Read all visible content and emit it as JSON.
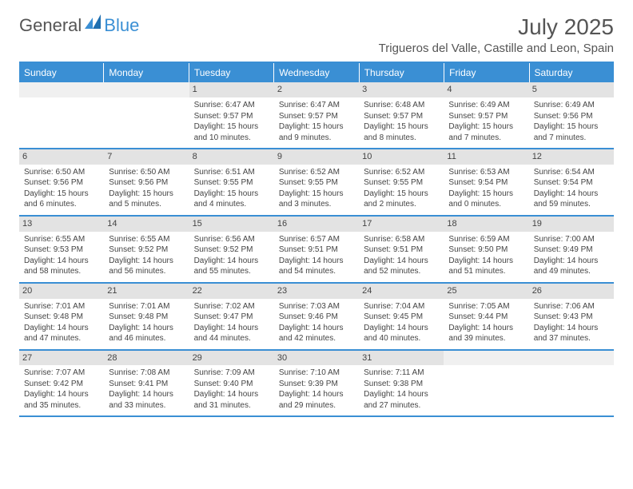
{
  "brand": {
    "part1": "General",
    "part2": "Blue"
  },
  "title": "July 2025",
  "location": "Trigueros del Valle, Castille and Leon, Spain",
  "colors": {
    "accent": "#3a8fd4",
    "header_text": "#ffffff",
    "daynum_bg": "#e3e3e3",
    "body_text": "#444444",
    "title_text": "#555555"
  },
  "dayNames": [
    "Sunday",
    "Monday",
    "Tuesday",
    "Wednesday",
    "Thursday",
    "Friday",
    "Saturday"
  ],
  "weeks": [
    [
      null,
      null,
      {
        "n": "1",
        "sr": "6:47 AM",
        "ss": "9:57 PM",
        "dl": "15 hours and 10 minutes."
      },
      {
        "n": "2",
        "sr": "6:47 AM",
        "ss": "9:57 PM",
        "dl": "15 hours and 9 minutes."
      },
      {
        "n": "3",
        "sr": "6:48 AM",
        "ss": "9:57 PM",
        "dl": "15 hours and 8 minutes."
      },
      {
        "n": "4",
        "sr": "6:49 AM",
        "ss": "9:57 PM",
        "dl": "15 hours and 7 minutes."
      },
      {
        "n": "5",
        "sr": "6:49 AM",
        "ss": "9:56 PM",
        "dl": "15 hours and 7 minutes."
      }
    ],
    [
      {
        "n": "6",
        "sr": "6:50 AM",
        "ss": "9:56 PM",
        "dl": "15 hours and 6 minutes."
      },
      {
        "n": "7",
        "sr": "6:50 AM",
        "ss": "9:56 PM",
        "dl": "15 hours and 5 minutes."
      },
      {
        "n": "8",
        "sr": "6:51 AM",
        "ss": "9:55 PM",
        "dl": "15 hours and 4 minutes."
      },
      {
        "n": "9",
        "sr": "6:52 AM",
        "ss": "9:55 PM",
        "dl": "15 hours and 3 minutes."
      },
      {
        "n": "10",
        "sr": "6:52 AM",
        "ss": "9:55 PM",
        "dl": "15 hours and 2 minutes."
      },
      {
        "n": "11",
        "sr": "6:53 AM",
        "ss": "9:54 PM",
        "dl": "15 hours and 0 minutes."
      },
      {
        "n": "12",
        "sr": "6:54 AM",
        "ss": "9:54 PM",
        "dl": "14 hours and 59 minutes."
      }
    ],
    [
      {
        "n": "13",
        "sr": "6:55 AM",
        "ss": "9:53 PM",
        "dl": "14 hours and 58 minutes."
      },
      {
        "n": "14",
        "sr": "6:55 AM",
        "ss": "9:52 PM",
        "dl": "14 hours and 56 minutes."
      },
      {
        "n": "15",
        "sr": "6:56 AM",
        "ss": "9:52 PM",
        "dl": "14 hours and 55 minutes."
      },
      {
        "n": "16",
        "sr": "6:57 AM",
        "ss": "9:51 PM",
        "dl": "14 hours and 54 minutes."
      },
      {
        "n": "17",
        "sr": "6:58 AM",
        "ss": "9:51 PM",
        "dl": "14 hours and 52 minutes."
      },
      {
        "n": "18",
        "sr": "6:59 AM",
        "ss": "9:50 PM",
        "dl": "14 hours and 51 minutes."
      },
      {
        "n": "19",
        "sr": "7:00 AM",
        "ss": "9:49 PM",
        "dl": "14 hours and 49 minutes."
      }
    ],
    [
      {
        "n": "20",
        "sr": "7:01 AM",
        "ss": "9:48 PM",
        "dl": "14 hours and 47 minutes."
      },
      {
        "n": "21",
        "sr": "7:01 AM",
        "ss": "9:48 PM",
        "dl": "14 hours and 46 minutes."
      },
      {
        "n": "22",
        "sr": "7:02 AM",
        "ss": "9:47 PM",
        "dl": "14 hours and 44 minutes."
      },
      {
        "n": "23",
        "sr": "7:03 AM",
        "ss": "9:46 PM",
        "dl": "14 hours and 42 minutes."
      },
      {
        "n": "24",
        "sr": "7:04 AM",
        "ss": "9:45 PM",
        "dl": "14 hours and 40 minutes."
      },
      {
        "n": "25",
        "sr": "7:05 AM",
        "ss": "9:44 PM",
        "dl": "14 hours and 39 minutes."
      },
      {
        "n": "26",
        "sr": "7:06 AM",
        "ss": "9:43 PM",
        "dl": "14 hours and 37 minutes."
      }
    ],
    [
      {
        "n": "27",
        "sr": "7:07 AM",
        "ss": "9:42 PM",
        "dl": "14 hours and 35 minutes."
      },
      {
        "n": "28",
        "sr": "7:08 AM",
        "ss": "9:41 PM",
        "dl": "14 hours and 33 minutes."
      },
      {
        "n": "29",
        "sr": "7:09 AM",
        "ss": "9:40 PM",
        "dl": "14 hours and 31 minutes."
      },
      {
        "n": "30",
        "sr": "7:10 AM",
        "ss": "9:39 PM",
        "dl": "14 hours and 29 minutes."
      },
      {
        "n": "31",
        "sr": "7:11 AM",
        "ss": "9:38 PM",
        "dl": "14 hours and 27 minutes."
      },
      null,
      null
    ]
  ],
  "labels": {
    "sunrise": "Sunrise: ",
    "sunset": "Sunset: ",
    "daylight": "Daylight: "
  }
}
